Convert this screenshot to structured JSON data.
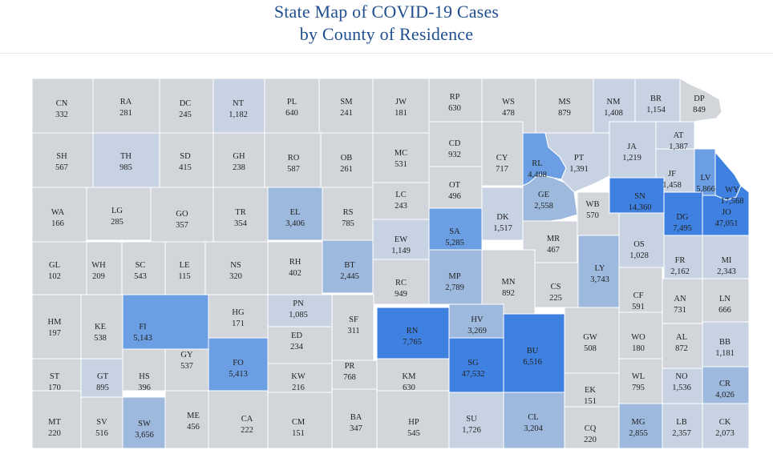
{
  "header": {
    "title_line1": "State Map of COVID-19 Cases",
    "title_line2": "by County of Residence"
  },
  "colors": {
    "low": "#d2d6db",
    "light": "#c7d3e3",
    "mid": "#9db9dd",
    "high": "#6b9ee2",
    "top": "#3f81e0",
    "border": "#ffffff"
  },
  "counties": [
    {
      "abbr": "CN",
      "value": "332",
      "level": "low"
    },
    {
      "abbr": "RA",
      "value": "281",
      "level": "low"
    },
    {
      "abbr": "DC",
      "value": "245",
      "level": "low"
    },
    {
      "abbr": "NT",
      "value": "1,182",
      "level": "light"
    },
    {
      "abbr": "PL",
      "value": "640",
      "level": "low"
    },
    {
      "abbr": "SM",
      "value": "241",
      "level": "low"
    },
    {
      "abbr": "JW",
      "value": "181",
      "level": "low"
    },
    {
      "abbr": "RP",
      "value": "630",
      "level": "low"
    },
    {
      "abbr": "WS",
      "value": "478",
      "level": "low"
    },
    {
      "abbr": "MS",
      "value": "879",
      "level": "low"
    },
    {
      "abbr": "NM",
      "value": "1,408",
      "level": "light"
    },
    {
      "abbr": "BR",
      "value": "1,154",
      "level": "light"
    },
    {
      "abbr": "DP",
      "value": "849",
      "level": "low"
    },
    {
      "abbr": "SH",
      "value": "567",
      "level": "low"
    },
    {
      "abbr": "TH",
      "value": "985",
      "level": "light"
    },
    {
      "abbr": "SD",
      "value": "415",
      "level": "low"
    },
    {
      "abbr": "GH",
      "value": "238",
      "level": "low"
    },
    {
      "abbr": "RO",
      "value": "587",
      "level": "low"
    },
    {
      "abbr": "OB",
      "value": "261",
      "level": "low"
    },
    {
      "abbr": "MC",
      "value": "531",
      "level": "low"
    },
    {
      "abbr": "CD",
      "value": "932",
      "level": "low"
    },
    {
      "abbr": "CY",
      "value": "717",
      "level": "low"
    },
    {
      "abbr": "RL",
      "value": "4,408",
      "level": "high"
    },
    {
      "abbr": "PT",
      "value": "1,391",
      "level": "light"
    },
    {
      "abbr": "JA",
      "value": "1,219",
      "level": "light"
    },
    {
      "abbr": "AT",
      "value": "1,387",
      "level": "light"
    },
    {
      "abbr": "JF",
      "value": "1,458",
      "level": "light"
    },
    {
      "abbr": "LV",
      "value": "5,866",
      "level": "high"
    },
    {
      "abbr": "WY",
      "value": "17,568",
      "level": "top"
    },
    {
      "abbr": "WA",
      "value": "166",
      "level": "low"
    },
    {
      "abbr": "LG",
      "value": "285",
      "level": "low"
    },
    {
      "abbr": "GO",
      "value": "357",
      "level": "low"
    },
    {
      "abbr": "TR",
      "value": "354",
      "level": "low"
    },
    {
      "abbr": "EL",
      "value": "3,406",
      "level": "mid"
    },
    {
      "abbr": "RS",
      "value": "785",
      "level": "low"
    },
    {
      "abbr": "LC",
      "value": "243",
      "level": "low"
    },
    {
      "abbr": "OT",
      "value": "496",
      "level": "low"
    },
    {
      "abbr": "GE",
      "value": "2,558",
      "level": "mid"
    },
    {
      "abbr": "DK",
      "value": "1,517",
      "level": "light"
    },
    {
      "abbr": "WB",
      "value": "570",
      "level": "low"
    },
    {
      "abbr": "SN",
      "value": "14,360",
      "level": "top"
    },
    {
      "abbr": "JO",
      "value": "47,051",
      "level": "top"
    },
    {
      "abbr": "DG",
      "value": "7,495",
      "level": "top"
    },
    {
      "abbr": "SA",
      "value": "5,285",
      "level": "high"
    },
    {
      "abbr": "EW",
      "value": "1,149",
      "level": "light"
    },
    {
      "abbr": "MR",
      "value": "467",
      "level": "low"
    },
    {
      "abbr": "OS",
      "value": "1,028",
      "level": "light"
    },
    {
      "abbr": "FR",
      "value": "2,162",
      "level": "light"
    },
    {
      "abbr": "MI",
      "value": "2,343",
      "level": "light"
    },
    {
      "abbr": "GL",
      "value": "102",
      "level": "low"
    },
    {
      "abbr": "WH",
      "value": "209",
      "level": "low"
    },
    {
      "abbr": "SC",
      "value": "543",
      "level": "low"
    },
    {
      "abbr": "LE",
      "value": "115",
      "level": "low"
    },
    {
      "abbr": "NS",
      "value": "320",
      "level": "low"
    },
    {
      "abbr": "RH",
      "value": "402",
      "level": "low"
    },
    {
      "abbr": "BT",
      "value": "2,445",
      "level": "mid"
    },
    {
      "abbr": "RC",
      "value": "949",
      "level": "low"
    },
    {
      "abbr": "MP",
      "value": "2,789",
      "level": "mid"
    },
    {
      "abbr": "MN",
      "value": "892",
      "level": "low"
    },
    {
      "abbr": "CS",
      "value": "225",
      "level": "low"
    },
    {
      "abbr": "LY",
      "value": "3,743",
      "level": "mid"
    },
    {
      "abbr": "CF",
      "value": "591",
      "level": "low"
    },
    {
      "abbr": "AN",
      "value": "731",
      "level": "low"
    },
    {
      "abbr": "LN",
      "value": "666",
      "level": "low"
    },
    {
      "abbr": "HM",
      "value": "197",
      "level": "low"
    },
    {
      "abbr": "KE",
      "value": "538",
      "level": "low"
    },
    {
      "abbr": "FI",
      "value": "5,143",
      "level": "high"
    },
    {
      "abbr": "HG",
      "value": "171",
      "level": "low"
    },
    {
      "abbr": "PN",
      "value": "1,085",
      "level": "light"
    },
    {
      "abbr": "SF",
      "value": "311",
      "level": "low"
    },
    {
      "abbr": "RN",
      "value": "7,765",
      "level": "top"
    },
    {
      "abbr": "HV",
      "value": "3,269",
      "level": "mid"
    },
    {
      "abbr": "BU",
      "value": "6,516",
      "level": "top"
    },
    {
      "abbr": "GW",
      "value": "508",
      "level": "low"
    },
    {
      "abbr": "WO",
      "value": "180",
      "level": "low"
    },
    {
      "abbr": "AL",
      "value": "872",
      "level": "low"
    },
    {
      "abbr": "BB",
      "value": "1,181",
      "level": "light"
    },
    {
      "abbr": "GY",
      "value": "537",
      "level": "low"
    },
    {
      "abbr": "FO",
      "value": "5,413",
      "level": "high"
    },
    {
      "abbr": "ED",
      "value": "234",
      "level": "low"
    },
    {
      "abbr": "PR",
      "value": "768",
      "level": "low"
    },
    {
      "abbr": "SG",
      "value": "47,532",
      "level": "top"
    },
    {
      "abbr": "ST",
      "value": "170",
      "level": "low"
    },
    {
      "abbr": "GT",
      "value": "895",
      "level": "light"
    },
    {
      "abbr": "HS",
      "value": "396",
      "level": "low"
    },
    {
      "abbr": "KW",
      "value": "216",
      "level": "low"
    },
    {
      "abbr": "KM",
      "value": "630",
      "level": "low"
    },
    {
      "abbr": "WL",
      "value": "795",
      "level": "low"
    },
    {
      "abbr": "NO",
      "value": "1,536",
      "level": "light"
    },
    {
      "abbr": "CR",
      "value": "4,026",
      "level": "mid"
    },
    {
      "abbr": "EK",
      "value": "151",
      "level": "low"
    },
    {
      "abbr": "MT",
      "value": "220",
      "level": "low"
    },
    {
      "abbr": "SV",
      "value": "516",
      "level": "low"
    },
    {
      "abbr": "SW",
      "value": "3,656",
      "level": "mid"
    },
    {
      "abbr": "ME",
      "value": "456",
      "level": "low"
    },
    {
      "abbr": "CA",
      "value": "222",
      "level": "low"
    },
    {
      "abbr": "CM",
      "value": "151",
      "level": "low"
    },
    {
      "abbr": "BA",
      "value": "347",
      "level": "low"
    },
    {
      "abbr": "HP",
      "value": "545",
      "level": "low"
    },
    {
      "abbr": "SU",
      "value": "1,726",
      "level": "light"
    },
    {
      "abbr": "CL",
      "value": "3,204",
      "level": "mid"
    },
    {
      "abbr": "CQ",
      "value": "220",
      "level": "low"
    },
    {
      "abbr": "MG",
      "value": "2,855",
      "level": "mid"
    },
    {
      "abbr": "LB",
      "value": "2,357",
      "level": "light"
    },
    {
      "abbr": "CK",
      "value": "2,073",
      "level": "light"
    }
  ]
}
